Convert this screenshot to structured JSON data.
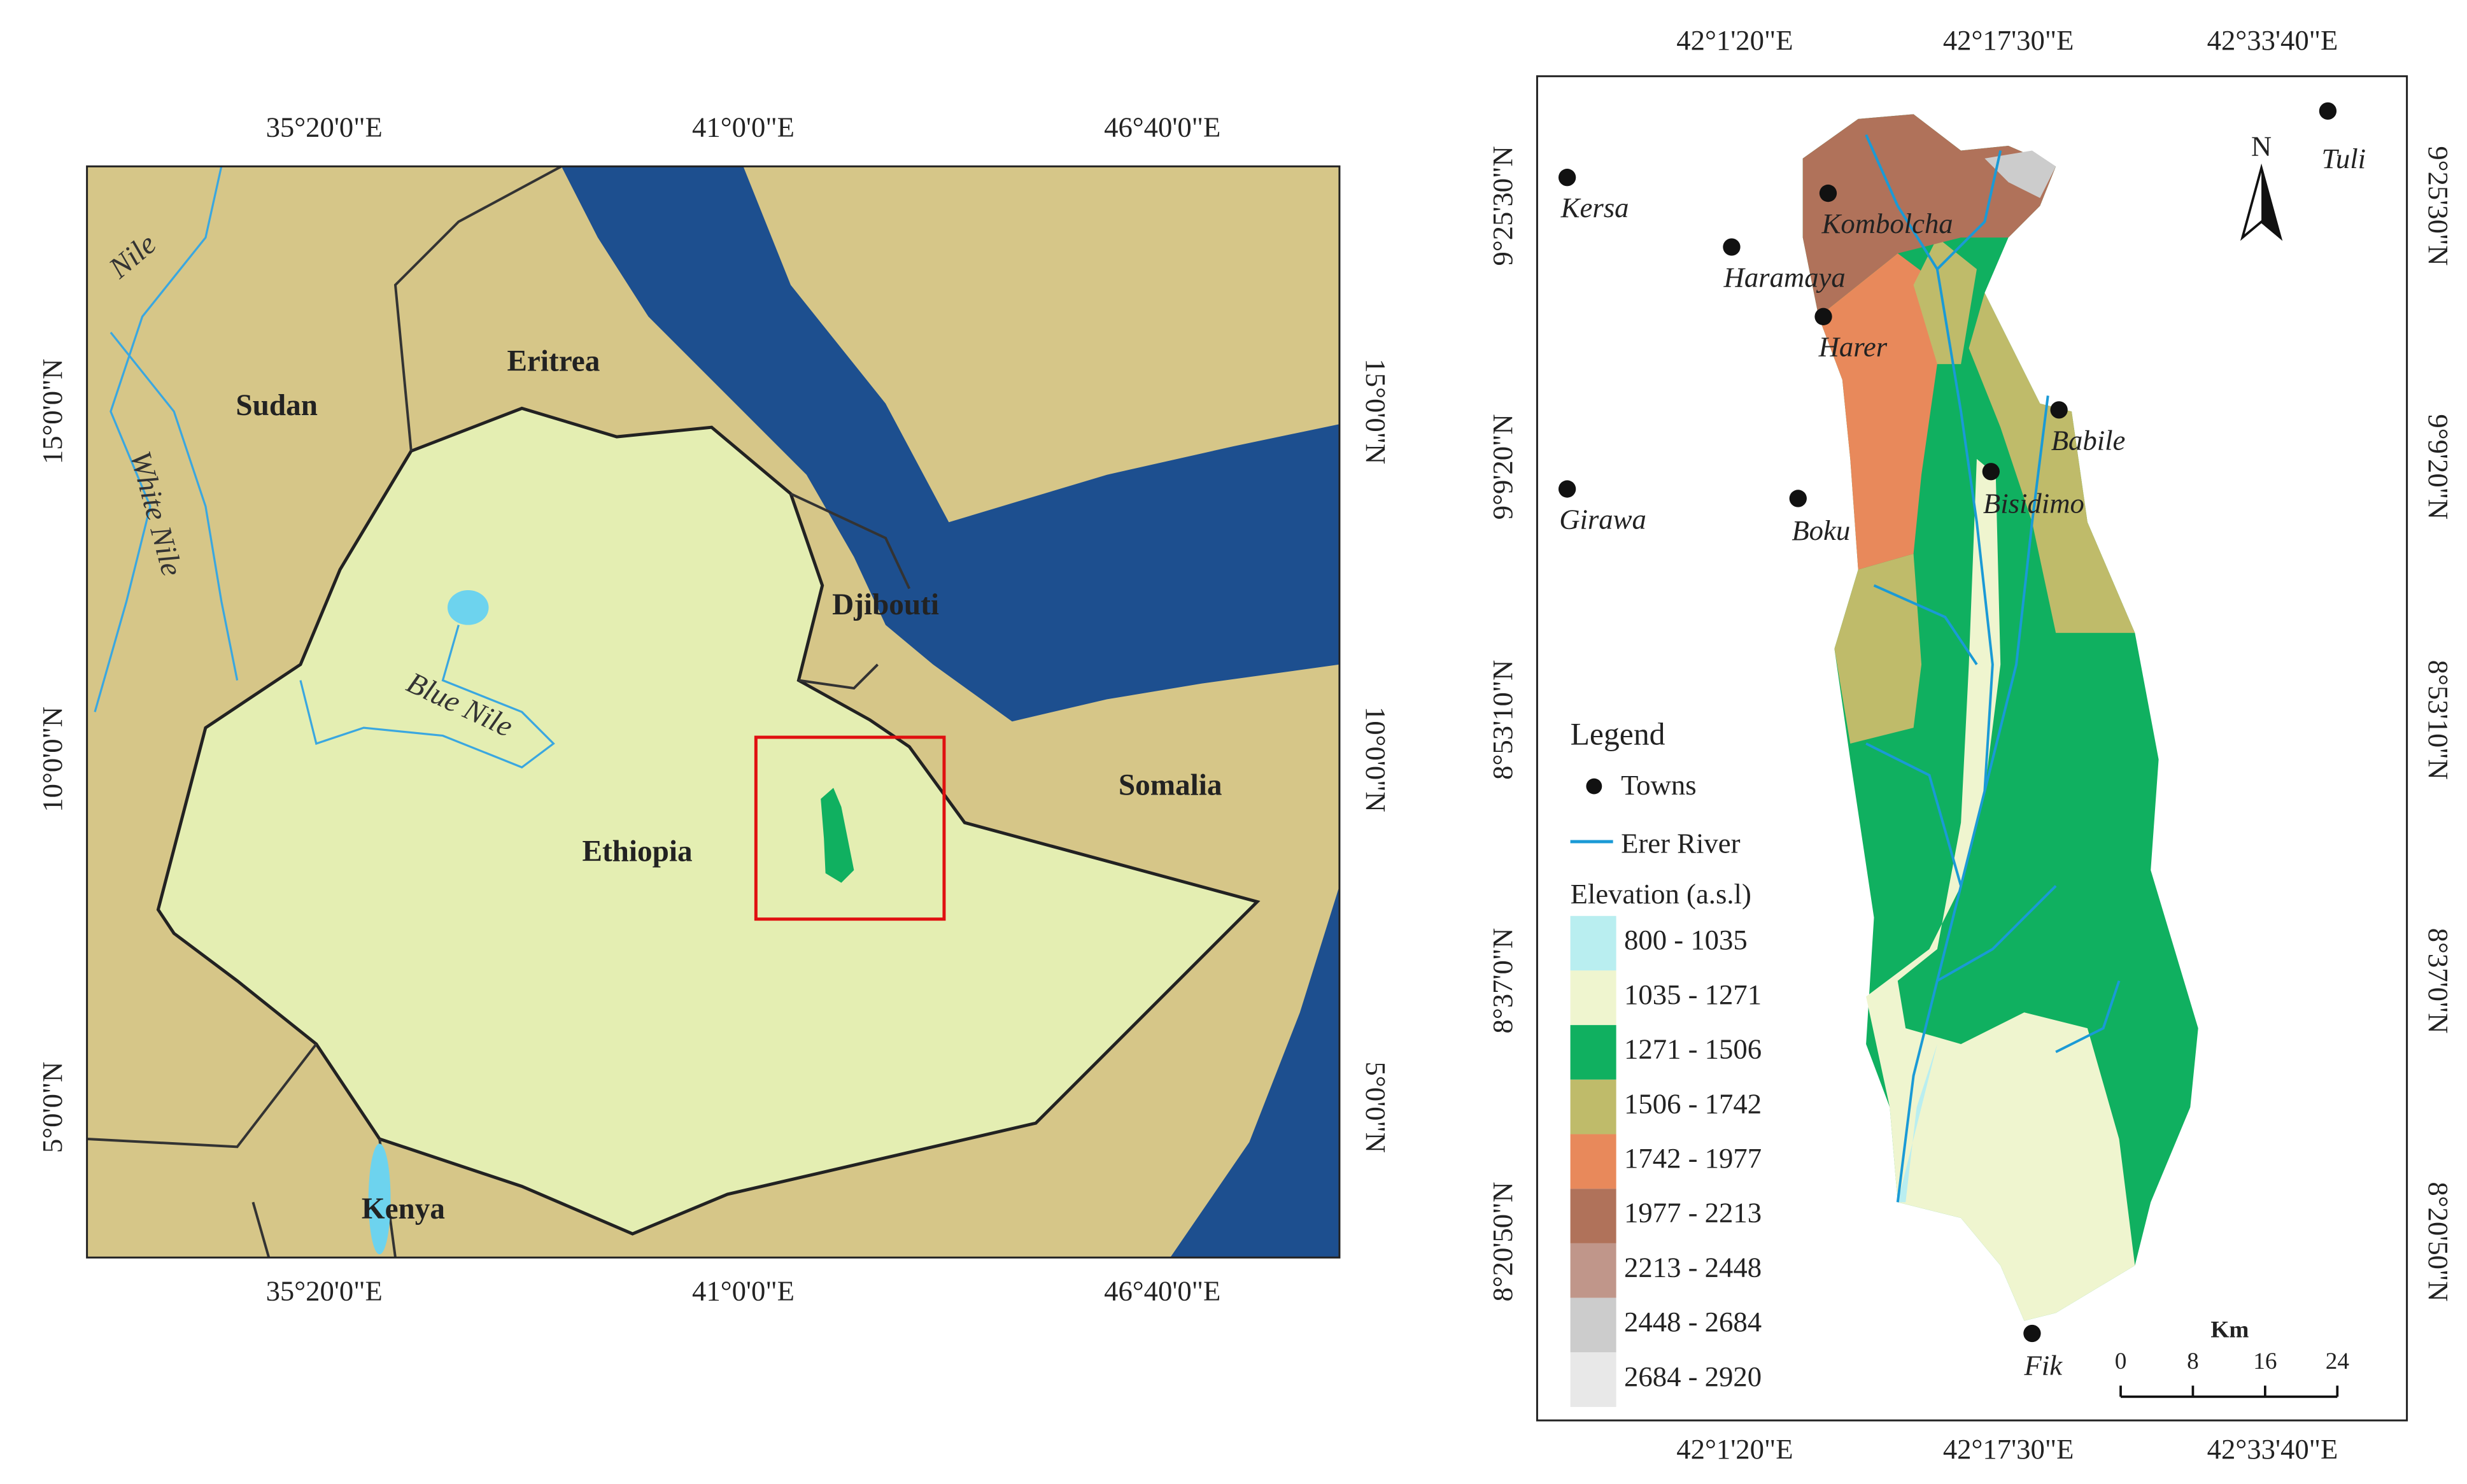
{
  "left_map": {
    "x_labels": [
      "35°20'0\"E",
      "41°0'0\"E",
      "46°40'0\"E"
    ],
    "y_labels": [
      "15°0'0\"N",
      "10°0'0\"N",
      "5°0'0\"N"
    ],
    "place_labels": [
      "Nile",
      "White Nile",
      "Sudan",
      "Eritrea",
      "Blue Nile",
      "Djibouti",
      "Ethiopia",
      "Somalia",
      "Kenya"
    ]
  },
  "right_map": {
    "x_labels": [
      "42°1'20\"E",
      "42°17'30\"E",
      "42°33'40\"E"
    ],
    "y_labels": [
      "9°25'30\"N",
      "9°9'20\"N",
      "8°53'10\"N",
      "8°37'0\"N",
      "8°20'50\"N"
    ],
    "towns": [
      "Kersa",
      "Haramaya",
      "Kombolcha",
      "Harer",
      "Babile",
      "Bisidimo",
      "Girawa",
      "Boku",
      "Tuli",
      "Fik"
    ],
    "north_arrow": "N",
    "legend": {
      "title": "Legend",
      "towns": "Towns",
      "river": "Erer River",
      "elevation_title": "Elevation (a.s.l)",
      "classes": [
        {
          "label": "800 - 1035",
          "color": "#b9eef0"
        },
        {
          "label": "1035 - 1271",
          "color": "#eff5cf"
        },
        {
          "label": "1271 - 1506",
          "color": "#10b060"
        },
        {
          "label": "1506 - 1742",
          "color": "#bfbb6a"
        },
        {
          "label": "1742 - 1977",
          "color": "#e8895b"
        },
        {
          "label": "1977 - 2213",
          "color": "#b0725a"
        },
        {
          "label": "2213 - 2448",
          "color": "#c0968a"
        },
        {
          "label": "2448 - 2684",
          "color": "#cccccc"
        },
        {
          "label": "2684 - 2920",
          "color": "#e8e8e8"
        }
      ]
    },
    "scale_bar": {
      "unit": "Km",
      "ticks": [
        0,
        8,
        16,
        24
      ]
    }
  }
}
